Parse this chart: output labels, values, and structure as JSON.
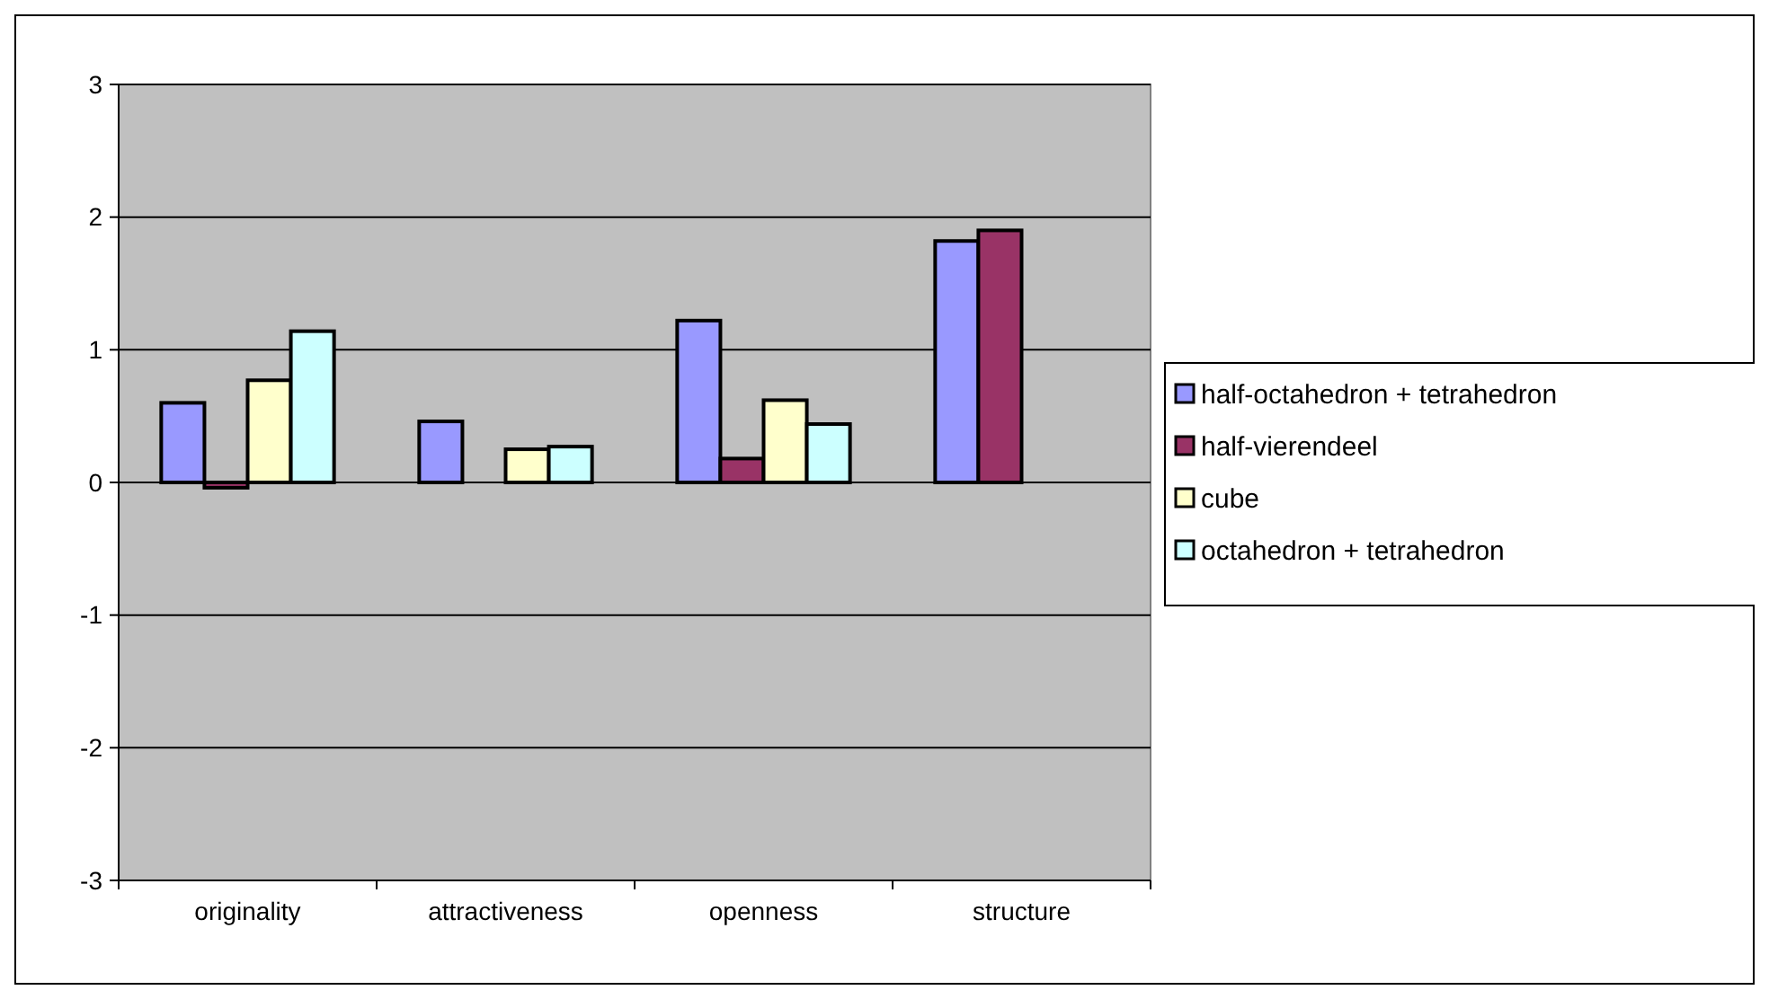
{
  "chart_data": {
    "type": "bar",
    "categories": [
      "originality",
      "attractiveness",
      "openness",
      "structure"
    ],
    "series": [
      {
        "name": "half-octahedron + tetrahedron",
        "color": "#9999ff",
        "values": [
          0.6,
          0.46,
          1.22,
          1.82
        ]
      },
      {
        "name": "half-vierendeel",
        "color": "#993366",
        "values": [
          -0.04,
          0,
          0.18,
          1.9
        ]
      },
      {
        "name": "cube",
        "color": "#ffffcc",
        "values": [
          0.77,
          0.25,
          0.62,
          0
        ]
      },
      {
        "name": "octahedron + tetrahedron",
        "color": "#ccffff",
        "values": [
          1.14,
          0.27,
          0.44,
          0
        ]
      }
    ],
    "ylim": [
      -3,
      3
    ],
    "yticks": [
      -3,
      -2,
      -1,
      0,
      1,
      2,
      3
    ],
    "grid": "y",
    "legend": "right"
  }
}
